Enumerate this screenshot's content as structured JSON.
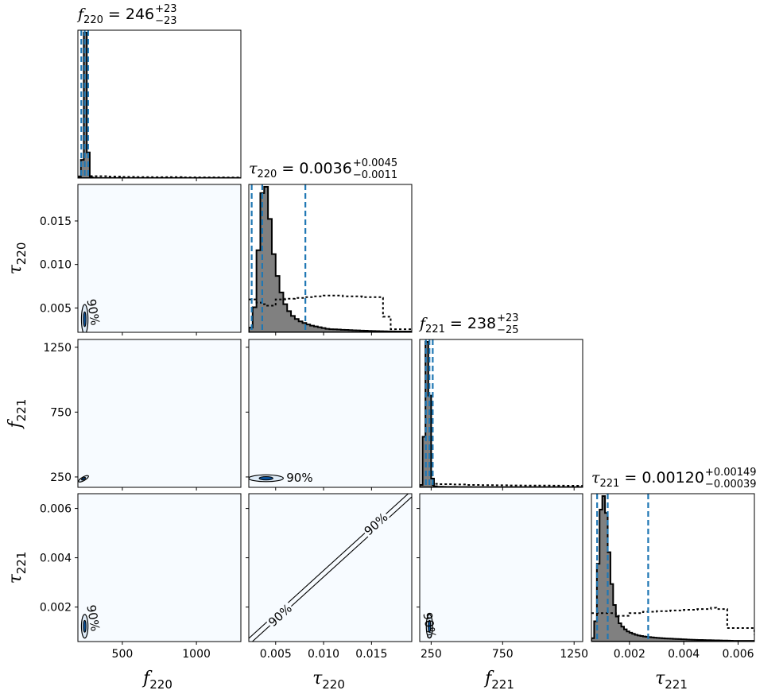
{
  "chart_data": {
    "type": "corner",
    "parameters": [
      {
        "symbol": "f",
        "sub": "220",
        "range": [
          200,
          1300
        ],
        "ticks": [
          500,
          1000
        ],
        "tick_labels": [
          "500",
          "1000"
        ]
      },
      {
        "symbol": "τ",
        "sub": "220",
        "range": [
          0.0022,
          0.0192
        ],
        "ticks": [
          0.005,
          0.01,
          0.015
        ],
        "tick_labels": [
          "0.005",
          "0.010",
          "0.015"
        ]
      },
      {
        "symbol": "f",
        "sub": "221",
        "range": [
          170,
          1310
        ],
        "ticks": [
          250,
          750,
          1250
        ],
        "tick_labels": [
          "250",
          "750",
          "1250"
        ]
      },
      {
        "symbol": "τ",
        "sub": "221",
        "range": [
          0.0006,
          0.0066
        ],
        "ticks": [
          0.002,
          0.004,
          0.006
        ],
        "tick_labels": [
          "0.002",
          "0.004",
          "0.006"
        ]
      }
    ],
    "titles": [
      {
        "symbol": "f",
        "sub": "220",
        "value": "246",
        "plus": "+23",
        "minus": "−23"
      },
      {
        "symbol": "τ",
        "sub": "220",
        "value": "0.0036",
        "plus": "+0.0045",
        "minus": "−0.0011"
      },
      {
        "symbol": "f",
        "sub": "221",
        "value": "238",
        "plus": "+23",
        "minus": "−25"
      },
      {
        "symbol": "τ",
        "sub": "221",
        "value": "0.00120",
        "plus": "+0.00149",
        "minus": "−0.00039"
      }
    ],
    "quantile_lines": [
      [
        223,
        246,
        269
      ],
      [
        0.0025,
        0.0036,
        0.0081
      ],
      [
        213,
        238,
        261
      ],
      [
        0.00081,
        0.0012,
        0.00269
      ]
    ],
    "posterior_histograms": [
      {
        "bin_start": 200,
        "bin_width": 20,
        "counts": [
          100,
          1100,
          8800,
          1550,
          50,
          15,
          10,
          8,
          6,
          5,
          5,
          5,
          5,
          5,
          5,
          5,
          5,
          5,
          5,
          5,
          5,
          5,
          5,
          5,
          5,
          5,
          5,
          5,
          5,
          8,
          6,
          5,
          5,
          5,
          5,
          5,
          5,
          5,
          5,
          5,
          5,
          5,
          5,
          5,
          5,
          5,
          5,
          5,
          5,
          5,
          5,
          5,
          5,
          5,
          5
        ]
      },
      {
        "bin_start": 0.0022,
        "bin_width": 0.0004,
        "counts": [
          60,
          320,
          1050,
          1780,
          1860,
          1450,
          1000,
          720,
          510,
          360,
          270,
          210,
          170,
          140,
          120,
          100,
          85,
          75,
          65,
          55,
          45,
          40,
          38,
          35,
          32,
          30,
          28,
          26,
          24,
          22,
          20,
          18,
          16,
          15,
          14,
          13,
          12,
          11,
          10,
          10,
          10,
          10,
          10
        ]
      },
      {
        "bin_start": 170,
        "bin_width": 20,
        "counts": [
          150,
          3200,
          9200,
          5800,
          550,
          70,
          40,
          35,
          30,
          28,
          26,
          24,
          22,
          20,
          19,
          18,
          17,
          16,
          15,
          14,
          13,
          12,
          11,
          10,
          10,
          10,
          10,
          10,
          10,
          10,
          10,
          10,
          10,
          10,
          10,
          10,
          10,
          10,
          10,
          10,
          10,
          10,
          10,
          10,
          10,
          10,
          10,
          10,
          10,
          10,
          10,
          10,
          10,
          10,
          10,
          10,
          10
        ]
      },
      {
        "bin_start": 0.0006,
        "bin_width": 0.0001,
        "counts": [
          50,
          300,
          1150,
          1950,
          2150,
          1900,
          1320,
          850,
          540,
          370,
          270,
          220,
          180,
          150,
          130,
          115,
          100,
          90,
          82,
          75,
          70,
          66,
          62,
          58,
          55,
          52,
          49,
          46,
          44,
          42,
          40,
          38,
          36,
          34,
          32,
          30,
          28,
          26,
          25,
          24,
          23,
          22,
          21,
          20,
          19,
          18,
          17,
          16,
          15,
          14,
          13,
          12,
          11,
          10,
          10,
          10,
          10,
          10,
          10,
          10
        ]
      }
    ],
    "prior_histograms": [
      {
        "x": [
          200,
          260,
          280,
          300,
          400,
          500,
          600,
          700,
          800,
          900,
          1000,
          1100,
          1200,
          1300
        ],
        "y": [
          0,
          0,
          120,
          115,
          90,
          70,
          60,
          55,
          60,
          45,
          42,
          40,
          38,
          36
        ]
      },
      {
        "x": [
          0.0022,
          0.0025,
          0.003,
          0.0035,
          0.004,
          0.005,
          0.006,
          0.007,
          0.008,
          0.009,
          0.01,
          0.012,
          0.014,
          0.016,
          0.0162,
          0.017,
          0.0192
        ],
        "y": [
          420,
          420,
          380,
          360,
          340,
          420,
          430,
          440,
          450,
          460,
          470,
          460,
          450,
          440,
          200,
          40,
          40
        ]
      },
      {
        "x": [
          170,
          220,
          260,
          300,
          400,
          500,
          600,
          700,
          800,
          900,
          1000,
          1100,
          1200,
          1310
        ],
        "y": [
          0,
          0,
          220,
          200,
          180,
          150,
          140,
          130,
          120,
          115,
          110,
          105,
          100,
          100
        ]
      },
      {
        "x": [
          0.0006,
          0.001,
          0.0015,
          0.002,
          0.0025,
          0.003,
          0.0035,
          0.004,
          0.0045,
          0.005,
          0.0052,
          0.0056,
          0.0066
        ],
        "y": [
          420,
          420,
          380,
          420,
          440,
          450,
          460,
          470,
          480,
          500,
          480,
          200,
          100
        ]
      }
    ],
    "contour_label": "90%",
    "contours": [
      {
        "row": 1,
        "col": 0,
        "cx": 246,
        "cy": 0.0037,
        "sx": 22,
        "sy": 0.0017,
        "rot": 0,
        "label_at": [
          300,
          0.0045
        ],
        "label_rot": 80
      },
      {
        "row": 2,
        "col": 0,
        "cx": 238,
        "cy": 236,
        "sx": 38,
        "sy": 14,
        "rot": -30,
        "label_at": null,
        "label_rot": 0
      },
      {
        "row": 2,
        "col": 1,
        "cx": 0.004,
        "cy": 240,
        "sx": 0.0018,
        "sy": 26,
        "rot": 0,
        "label_at": [
          0.0075,
          240
        ],
        "label_rot": 0
      },
      {
        "row": 3,
        "col": 0,
        "cx": 246,
        "cy": 0.00122,
        "sx": 22,
        "sy": 0.00048,
        "rot": 0,
        "label_at": [
          300,
          0.00155
        ],
        "label_rot": 80
      },
      {
        "row": 3,
        "col": 2,
        "cx": 238,
        "cy": 0.00122,
        "sx": 22,
        "sy": 0.00048,
        "rot": 0,
        "label_at": [
          235,
          0.00125
        ],
        "label_rot": 80
      }
    ],
    "diagonal_band": {
      "from": [
        0.0022,
        0.0006
      ],
      "to": [
        0.0192,
        0.0066
      ],
      "labels_at": [
        [
          0.0055,
          0.00165
        ],
        [
          0.0155,
          0.00535
        ]
      ]
    },
    "colors": {
      "posterior_fill": "#808080",
      "quantile": "#1f77b4",
      "density_bg": "#f7fbff",
      "contour_fill_light": "#deebf7",
      "contour_fill_dark": "#08519c"
    }
  }
}
